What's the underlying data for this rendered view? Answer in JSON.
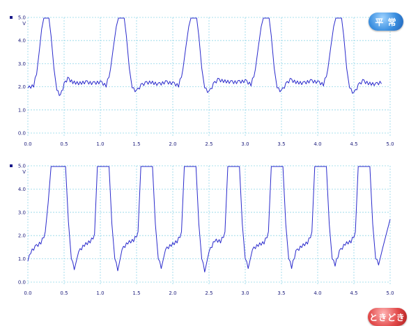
{
  "colors": {
    "trace": "#2a2acc",
    "grid": "#8fd6e8",
    "text": "#1a1a7a"
  },
  "chart_data": [
    {
      "type": "line",
      "badge": "平 常",
      "badge_color": "#3b8fe0",
      "unit": "V",
      "xlim": [
        0,
        5
      ],
      "ylim": [
        0,
        5
      ],
      "x_ticks": [
        "0.0",
        "0.5",
        "1.0",
        "1.5",
        "2.0",
        "2.5",
        "3.0",
        "3.5",
        "4.0",
        "4.5",
        "5.0"
      ],
      "y_ticks": [
        "0.0",
        "1.0",
        "2.0",
        "3.0",
        "4.0",
        "5.0"
      ],
      "grid": true,
      "series": [
        {
          "x": [
            0.0,
            0.08,
            0.12,
            0.16,
            0.19,
            0.22,
            0.26,
            0.29,
            0.32,
            0.36,
            0.4,
            0.45,
            0.5,
            0.55,
            0.62,
            0.7,
            0.8,
            0.9,
            1.0,
            1.08,
            1.14,
            1.18,
            1.22,
            1.25,
            1.29,
            1.33,
            1.36,
            1.4,
            1.44,
            1.5,
            1.56,
            1.62,
            1.7,
            1.8,
            1.9,
            2.0,
            2.08,
            2.14,
            2.18,
            2.22,
            2.25,
            2.29,
            2.33,
            2.36,
            2.4,
            2.44,
            2.5,
            2.56,
            2.62,
            2.7,
            2.8,
            2.9,
            3.0,
            3.08,
            3.14,
            3.18,
            3.22,
            3.25,
            3.29,
            3.33,
            3.36,
            3.4,
            3.44,
            3.5,
            3.56,
            3.62,
            3.7,
            3.8,
            3.9,
            4.0,
            4.08,
            4.14,
            4.18,
            4.22,
            4.25,
            4.29,
            4.33,
            4.36,
            4.4,
            4.44,
            4.5,
            4.56,
            4.62,
            4.7,
            4.8,
            4.88
          ],
          "y": [
            1.95,
            2.05,
            2.6,
            3.6,
            4.5,
            4.97,
            4.97,
            4.97,
            4.2,
            2.8,
            1.85,
            1.6,
            2.1,
            2.35,
            2.2,
            2.15,
            2.2,
            2.15,
            2.2,
            2.05,
            2.7,
            3.7,
            4.6,
            4.97,
            4.97,
            4.97,
            4.2,
            2.8,
            1.95,
            1.8,
            2.05,
            2.15,
            2.2,
            2.1,
            2.2,
            2.15,
            2.05,
            2.7,
            3.7,
            4.6,
            4.97,
            4.97,
            4.97,
            4.2,
            2.8,
            1.95,
            1.75,
            2.1,
            2.3,
            2.25,
            2.2,
            2.2,
            2.25,
            2.1,
            2.7,
            3.7,
            4.6,
            4.97,
            4.97,
            4.97,
            4.2,
            2.8,
            1.95,
            1.8,
            2.1,
            2.3,
            2.2,
            2.15,
            2.25,
            2.2,
            2.1,
            2.7,
            3.7,
            4.6,
            4.97,
            4.97,
            4.97,
            4.2,
            2.8,
            1.95,
            1.7,
            2.05,
            2.25,
            2.15,
            2.1,
            2.2
          ]
        }
      ]
    },
    {
      "type": "line",
      "badge": "ときどき",
      "badge_color": "#e24a4a",
      "unit": "V",
      "xlim": [
        0,
        5
      ],
      "ylim": [
        0,
        5
      ],
      "x_ticks": [
        "0.0",
        "0.5",
        "1.0",
        "1.5",
        "2.0",
        "2.5",
        "3.0",
        "3.5",
        "4.0",
        "4.5",
        "5.0"
      ],
      "y_ticks": [
        "0.0",
        "1.0",
        "2.0",
        "3.0",
        "4.0",
        "5.0"
      ],
      "grid": true,
      "series": [
        {
          "x": [
            0.0,
            0.04,
            0.1,
            0.18,
            0.24,
            0.28,
            0.32,
            0.36,
            0.48,
            0.52,
            0.56,
            0.6,
            0.64,
            0.7,
            0.78,
            0.86,
            0.92,
            0.96,
            1.08,
            1.12,
            1.16,
            1.2,
            1.24,
            1.3,
            1.38,
            1.46,
            1.52,
            1.56,
            1.68,
            1.72,
            1.76,
            1.8,
            1.84,
            1.9,
            1.98,
            2.06,
            2.12,
            2.16,
            2.28,
            2.32,
            2.36,
            2.4,
            2.44,
            2.5,
            2.58,
            2.66,
            2.72,
            2.76,
            2.88,
            2.92,
            2.96,
            3.0,
            3.04,
            3.1,
            3.18,
            3.26,
            3.32,
            3.36,
            3.48,
            3.52,
            3.56,
            3.6,
            3.64,
            3.7,
            3.78,
            3.86,
            3.92,
            3.96,
            4.08,
            4.12,
            4.16,
            4.2,
            4.24,
            4.3,
            4.38,
            4.46,
            4.52,
            4.56,
            4.68,
            4.72,
            4.76,
            4.8,
            4.84,
            4.9,
            5.0
          ],
          "y": [
            0.9,
            1.3,
            1.5,
            1.7,
            2.1,
            3.4,
            4.97,
            4.97,
            4.97,
            4.97,
            2.6,
            1.0,
            0.6,
            1.3,
            1.6,
            1.75,
            2.0,
            4.97,
            4.97,
            4.97,
            2.5,
            1.0,
            0.55,
            1.4,
            1.7,
            1.8,
            2.1,
            4.97,
            4.97,
            4.97,
            2.5,
            1.0,
            0.65,
            1.4,
            1.6,
            1.75,
            2.1,
            4.97,
            4.97,
            4.97,
            2.5,
            1.0,
            0.5,
            1.3,
            1.8,
            1.75,
            2.1,
            4.97,
            4.97,
            4.97,
            2.5,
            1.0,
            0.65,
            1.4,
            1.6,
            1.7,
            2.1,
            4.97,
            4.97,
            4.97,
            2.5,
            1.0,
            0.65,
            1.3,
            1.55,
            1.7,
            2.1,
            4.97,
            4.97,
            4.97,
            2.5,
            1.0,
            0.75,
            1.3,
            1.65,
            1.75,
            2.1,
            4.97,
            4.97,
            4.97,
            2.5,
            1.0,
            0.8,
            1.5,
            2.7
          ]
        }
      ]
    }
  ]
}
